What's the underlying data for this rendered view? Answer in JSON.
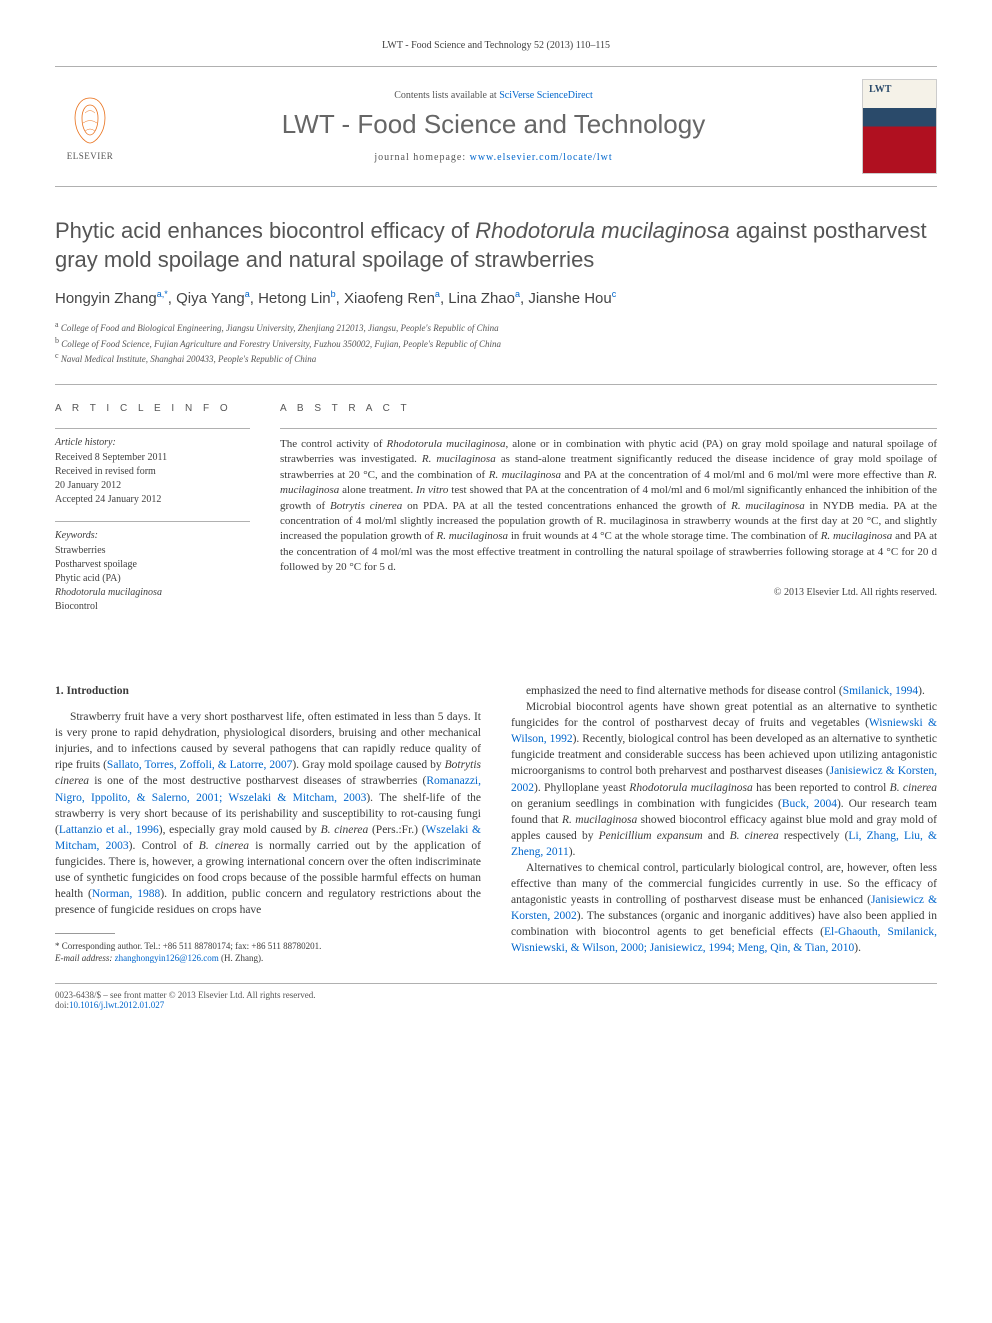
{
  "header_citation": "LWT - Food Science and Technology 52 (2013) 110–115",
  "masthead": {
    "contents_prefix": "Contents lists available at ",
    "contents_link": "SciVerse ScienceDirect",
    "journal_name": "LWT - Food Science and Technology",
    "homepage_prefix": "journal homepage: ",
    "homepage_url": "www.elsevier.com/locate/lwt",
    "publisher_brand": "ELSEVIER"
  },
  "article": {
    "title_pre": "Phytic acid enhances biocontrol efficacy of ",
    "title_species": "Rhodotorula mucilaginosa",
    "title_post": " against postharvest gray mold spoilage and natural spoilage of strawberries",
    "authors_html": "Hongyin Zhang<sup>a,*</sup>, Qiya Yang<sup>a</sup>, Hetong Lin<sup>b</sup>, Xiaofeng Ren<sup>a</sup>, Lina Zhao<sup>a</sup>, Jianshe Hou<sup>c</sup>",
    "affiliations": [
      "a College of Food and Biological Engineering, Jiangsu University, Zhenjiang 212013, Jiangsu, People's Republic of China",
      "b College of Food Science, Fujian Agriculture and Forestry University, Fuzhou 350002, Fujian, People's Republic of China",
      "c Naval Medical Institute, Shanghai 200433, People's Republic of China"
    ]
  },
  "info": {
    "heading": "A R T I C L E   I N F O",
    "history_label": "Article history:",
    "history": "Received 8 September 2011\nReceived in revised form\n20 January 2012\nAccepted 24 January 2012",
    "keywords_label": "Keywords:",
    "keywords": [
      "Strawberries",
      "Postharvest spoilage",
      "Phytic acid (PA)",
      "Rhodotorula mucilaginosa",
      "Biocontrol"
    ]
  },
  "abstract": {
    "heading": "A B S T R A C T",
    "body": "The control activity of <span class=\"sp\">Rhodotorula mucilaginosa</span>, alone or in combination with phytic acid (PA) on gray mold spoilage and natural spoilage of strawberries was investigated. <span class=\"sp\">R. mucilaginosa</span> as stand-alone treatment significantly reduced the disease incidence of gray mold spoilage of strawberries at 20 °C, and the combination of <span class=\"sp\">R. mucilaginosa</span> and PA at the concentration of 4 mol/ml and 6 mol/ml were more effective than <span class=\"sp\">R. mucilaginosa</span> alone treatment. <span class=\"sp\">In vitro</span> test showed that PA at the concentration of 4 mol/ml and 6 mol/ml significantly enhanced the inhibition of the growth of <span class=\"sp\">Botrytis cinerea</span> on PDA. PA at all the tested concentrations enhanced the growth of <span class=\"sp\">R. mucilaginosa</span> in NYDB media. PA at the concentration of 4 mol/ml slightly increased the population growth of R. mucilaginosa in strawberry wounds at the first day at 20 °C, and slightly increased the population growth of <span class=\"sp\">R. mucilaginosa</span> in fruit wounds at 4 °C at the whole storage time. The combination of <span class=\"sp\">R. mucilaginosa</span> and PA at the concentration of 4 mol/ml was the most effective treatment in controlling the natural spoilage of strawberries following storage at 4 °C for 20 d followed by 20 °C for 5 d.",
    "copyright": "© 2013 Elsevier Ltd. All rights reserved."
  },
  "body": {
    "section1_heading": "1. Introduction",
    "p1": "Strawberry fruit have a very short postharvest life, often estimated in less than 5 days. It is very prone to rapid dehydration, physiological disorders, bruising and other mechanical injuries, and to infections caused by several pathogens that can rapidly reduce quality of ripe fruits (<a>Sallato, Torres, Zoffoli, & Latorre, 2007</a>). Gray mold spoilage caused by <span class=\"sp\">Botrytis cinerea</span> is one of the most destructive postharvest diseases of strawberries (<a>Romanazzi, Nigro, Ippolito, & Salerno, 2001; Wszelaki & Mitcham, 2003</a>). The shelf-life of the strawberry is very short because of its perishability and susceptibility to rot-causing fungi (<a>Lattanzio et al., 1996</a>), especially gray mold caused by <span class=\"sp\">B. cinerea</span> (Pers.:Fr.) (<a>Wszelaki & Mitcham, 2003</a>). Control of <span class=\"sp\">B. cinerea</span> is normally carried out by the application of fungicides. There is, however, a growing international concern over the often indiscriminate use of synthetic fungicides on food crops because of the possible harmful effects on human health (<a>Norman, 1988</a>). In addition, public concern and regulatory restrictions about the presence of fungicide residues on crops have",
    "p2": "emphasized the need to find alternative methods for disease control (<a>Smilanick, 1994</a>).",
    "p3": "Microbial biocontrol agents have shown great potential as an alternative to synthetic fungicides for the control of postharvest decay of fruits and vegetables (<a>Wisniewski & Wilson, 1992</a>). Recently, biological control has been developed as an alternative to synthetic fungicide treatment and considerable success has been achieved upon utilizing antagonistic microorganisms to control both preharvest and postharvest diseases (<a>Janisiewicz & Korsten, 2002</a>). Phylloplane yeast <span class=\"sp\">Rhodotorula mucilaginosa</span> has been reported to control <span class=\"sp\">B. cinerea</span> on geranium seedlings in combination with fungicides (<a>Buck, 2004</a>). Our research team found that <span class=\"sp\">R. mucilaginosa</span> showed biocontrol efficacy against blue mold and gray mold of apples caused by <span class=\"sp\">Penicillium expansum</span> and <span class=\"sp\">B. cinerea</span> respectively (<a>Li, Zhang, Liu, & Zheng, 2011</a>).",
    "p4": "Alternatives to chemical control, particularly biological control, are, however, often less effective than many of the commercial fungicides currently in use. So the efficacy of antagonistic yeasts in controlling of postharvest disease must be enhanced (<a>Janisiewicz & Korsten, 2002</a>). The substances (organic and inorganic additives) have also been applied in combination with biocontrol agents to get beneficial effects (<a>El-Ghaouth, Smilanick, Wisniewski, & Wilson, 2000; Janisiewicz, 1994; Meng, Qin, & Tian, 2010</a>)."
  },
  "footnote": {
    "corr": "* Corresponding author. Tel.: +86 511 88780174; fax: +86 511 88780201.",
    "email_label": "E-mail address: ",
    "email": "zhanghongyin126@126.com",
    "email_tail": " (H. Zhang)."
  },
  "footer": {
    "line1": "0023-6438/$ – see front matter © 2013 Elsevier Ltd. All rights reserved.",
    "doi_label": "doi:",
    "doi": "10.1016/j.lwt.2012.01.027"
  },
  "colors": {
    "link": "#0066cc",
    "rule": "#b0b0b0",
    "text": "#3a3a3a",
    "orange": "#e9711c"
  }
}
